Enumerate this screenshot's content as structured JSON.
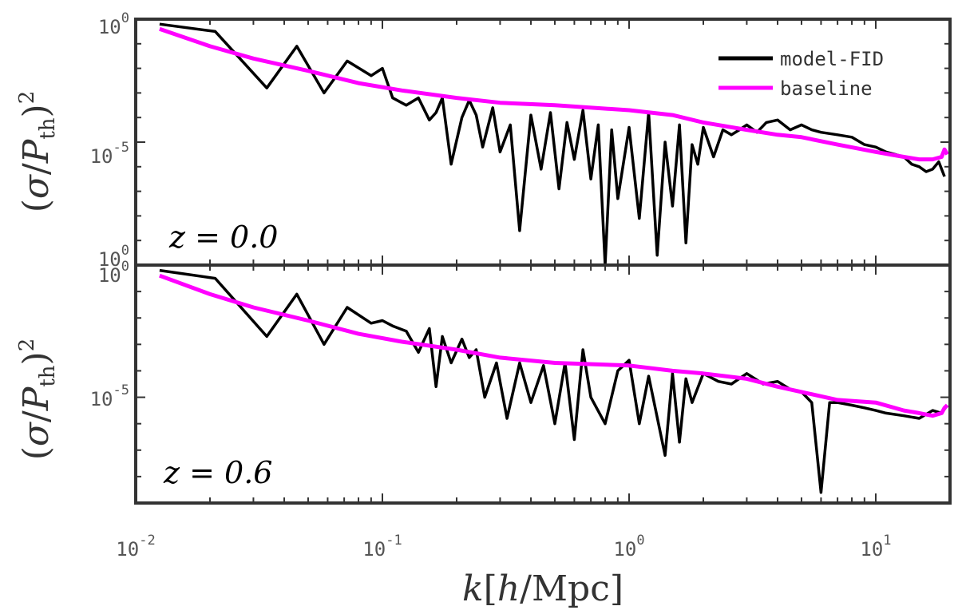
{
  "colors": {
    "model": "#000000",
    "baseline": "#ff00ff",
    "frame": "#333333",
    "tick_text": "#555555"
  },
  "chart_data": {
    "type": "line",
    "xscale": "log",
    "yscale": "log",
    "xlabel": "k[h/Mpc]",
    "ylabel": "(σ/P_th)^2",
    "xlim": [
      0.01,
      20
    ],
    "x_ticks": [
      {
        "base": "10",
        "exp": "-2"
      },
      {
        "base": "10",
        "exp": "-1"
      },
      {
        "base": "10",
        "exp": "0"
      },
      {
        "base": "10",
        "exp": "1"
      }
    ],
    "legend": {
      "location": "top-right",
      "entries": [
        {
          "label": "model-FID",
          "color": "#000000"
        },
        {
          "label": "baseline",
          "color": "#ff00ff"
        }
      ]
    },
    "panels": [
      {
        "label": "z = 0.0",
        "y_ticks": [
          {
            "base": "10",
            "exp": "0"
          },
          {
            "base": "10",
            "exp": "-5"
          },
          {
            "base": "10",
            "exp": "0"
          }
        ],
        "ylim_log10": [
          -10,
          0
        ],
        "series": [
          {
            "name": "model-FID",
            "x": [
              0.0125,
              0.021,
              0.034,
              0.045,
              0.058,
              0.072,
              0.09,
              0.1,
              0.11,
              0.125,
              0.14,
              0.155,
              0.165,
              0.175,
              0.19,
              0.21,
              0.225,
              0.24,
              0.255,
              0.28,
              0.3,
              0.33,
              0.36,
              0.4,
              0.44,
              0.48,
              0.52,
              0.56,
              0.6,
              0.65,
              0.7,
              0.75,
              0.8,
              0.85,
              0.9,
              1.0,
              1.1,
              1.2,
              1.3,
              1.4,
              1.5,
              1.6,
              1.7,
              1.8,
              1.9,
              2.0,
              2.2,
              2.4,
              2.6,
              2.8,
              3.0,
              3.3,
              3.6,
              4.0,
              4.5,
              5.0,
              5.5,
              6.0,
              7.0,
              8.0,
              9.0,
              10.0,
              11.0,
              12.0,
              13.0,
              14.0,
              15.0,
              16.0,
              17.0,
              18.0,
              19.0
            ],
            "log10y": [
              -0.2,
              -0.5,
              -2.8,
              -1.1,
              -3.0,
              -1.7,
              -2.3,
              -2.0,
              -3.2,
              -3.5,
              -3.2,
              -4.1,
              -3.8,
              -3.2,
              -5.9,
              -4.0,
              -3.3,
              -3.9,
              -5.2,
              -3.6,
              -5.4,
              -4.3,
              -8.6,
              -3.9,
              -6.1,
              -3.8,
              -6.9,
              -4.2,
              -5.7,
              -3.7,
              -6.5,
              -4.3,
              -10.0,
              -4.5,
              -7.3,
              -4.4,
              -8.1,
              -3.8,
              -9.6,
              -5.0,
              -7.6,
              -4.3,
              -9.1,
              -5.1,
              -5.9,
              -4.4,
              -5.6,
              -4.5,
              -4.7,
              -4.5,
              -4.3,
              -4.6,
              -4.2,
              -4.1,
              -4.5,
              -4.3,
              -4.5,
              -4.6,
              -4.7,
              -4.8,
              -5.1,
              -5.2,
              -5.4,
              -5.5,
              -5.6,
              -5.9,
              -6.0,
              -6.2,
              -6.1,
              -5.8,
              -6.4
            ]
          },
          {
            "name": "baseline",
            "x": [
              0.0125,
              0.02,
              0.03,
              0.05,
              0.08,
              0.12,
              0.2,
              0.3,
              0.5,
              1.0,
              1.5,
              2.0,
              3.0,
              4.0,
              5.0,
              7.0,
              10.0,
              13.0,
              15.0,
              17.0,
              18.5,
              19.0,
              19.5
            ],
            "log10y": [
              -0.4,
              -1.1,
              -1.6,
              -2.1,
              -2.6,
              -2.9,
              -3.2,
              -3.4,
              -3.5,
              -3.7,
              -3.9,
              -4.2,
              -4.5,
              -4.7,
              -4.8,
              -5.1,
              -5.4,
              -5.6,
              -5.7,
              -5.7,
              -5.6,
              -5.3,
              -5.5
            ]
          }
        ]
      },
      {
        "label": "z = 0.6",
        "y_ticks": [
          {
            "base": "10",
            "exp": "0"
          },
          {
            "base": "10",
            "exp": "-5"
          }
        ],
        "ylim_log10": [
          -9,
          0
        ],
        "series": [
          {
            "name": "model-FID",
            "x": [
              0.0125,
              0.021,
              0.034,
              0.045,
              0.058,
              0.072,
              0.09,
              0.1,
              0.11,
              0.125,
              0.14,
              0.155,
              0.165,
              0.175,
              0.19,
              0.21,
              0.225,
              0.24,
              0.26,
              0.29,
              0.32,
              0.36,
              0.4,
              0.45,
              0.5,
              0.55,
              0.6,
              0.65,
              0.7,
              0.8,
              0.9,
              1.0,
              1.1,
              1.2,
              1.4,
              1.5,
              1.6,
              1.7,
              1.8,
              2.0,
              2.3,
              2.6,
              3.0,
              3.5,
              4.0,
              4.5,
              5.0,
              5.5,
              6.0,
              6.5,
              7.0,
              8.0,
              9.0,
              10.0,
              11.0,
              13.0,
              15.0,
              17.0,
              18.5,
              19.5
            ],
            "log10y": [
              -0.2,
              -0.5,
              -2.7,
              -1.1,
              -3.0,
              -1.6,
              -2.2,
              -2.1,
              -2.3,
              -2.5,
              -3.3,
              -2.4,
              -4.6,
              -2.7,
              -3.7,
              -2.8,
              -3.5,
              -3.2,
              -5.0,
              -3.7,
              -5.8,
              -3.7,
              -5.2,
              -3.8,
              -6.0,
              -3.7,
              -6.6,
              -3.2,
              -5.0,
              -6.0,
              -4.0,
              -3.6,
              -6.0,
              -4.2,
              -7.2,
              -4.1,
              -6.7,
              -4.3,
              -5.2,
              -4.1,
              -4.4,
              -4.5,
              -4.1,
              -4.5,
              -4.4,
              -4.7,
              -4.8,
              -5.2,
              -8.6,
              -5.2,
              -5.2,
              -5.3,
              -5.4,
              -5.5,
              -5.6,
              -5.7,
              -5.8,
              -5.5,
              -5.6,
              -5.3
            ]
          },
          {
            "name": "baseline",
            "x": [
              0.0125,
              0.02,
              0.03,
              0.05,
              0.08,
              0.12,
              0.2,
              0.3,
              0.5,
              1.0,
              1.5,
              2.0,
              3.0,
              4.0,
              5.0,
              7.0,
              10.0,
              13.0,
              15.0,
              17.0,
              18.5,
              19.0,
              19.5
            ],
            "log10y": [
              -0.4,
              -1.1,
              -1.6,
              -2.1,
              -2.6,
              -2.9,
              -3.2,
              -3.5,
              -3.7,
              -3.8,
              -4.0,
              -4.1,
              -4.3,
              -4.6,
              -4.8,
              -5.1,
              -5.2,
              -5.5,
              -5.6,
              -5.7,
              -5.6,
              -5.4,
              -5.3
            ]
          }
        ]
      }
    ]
  }
}
